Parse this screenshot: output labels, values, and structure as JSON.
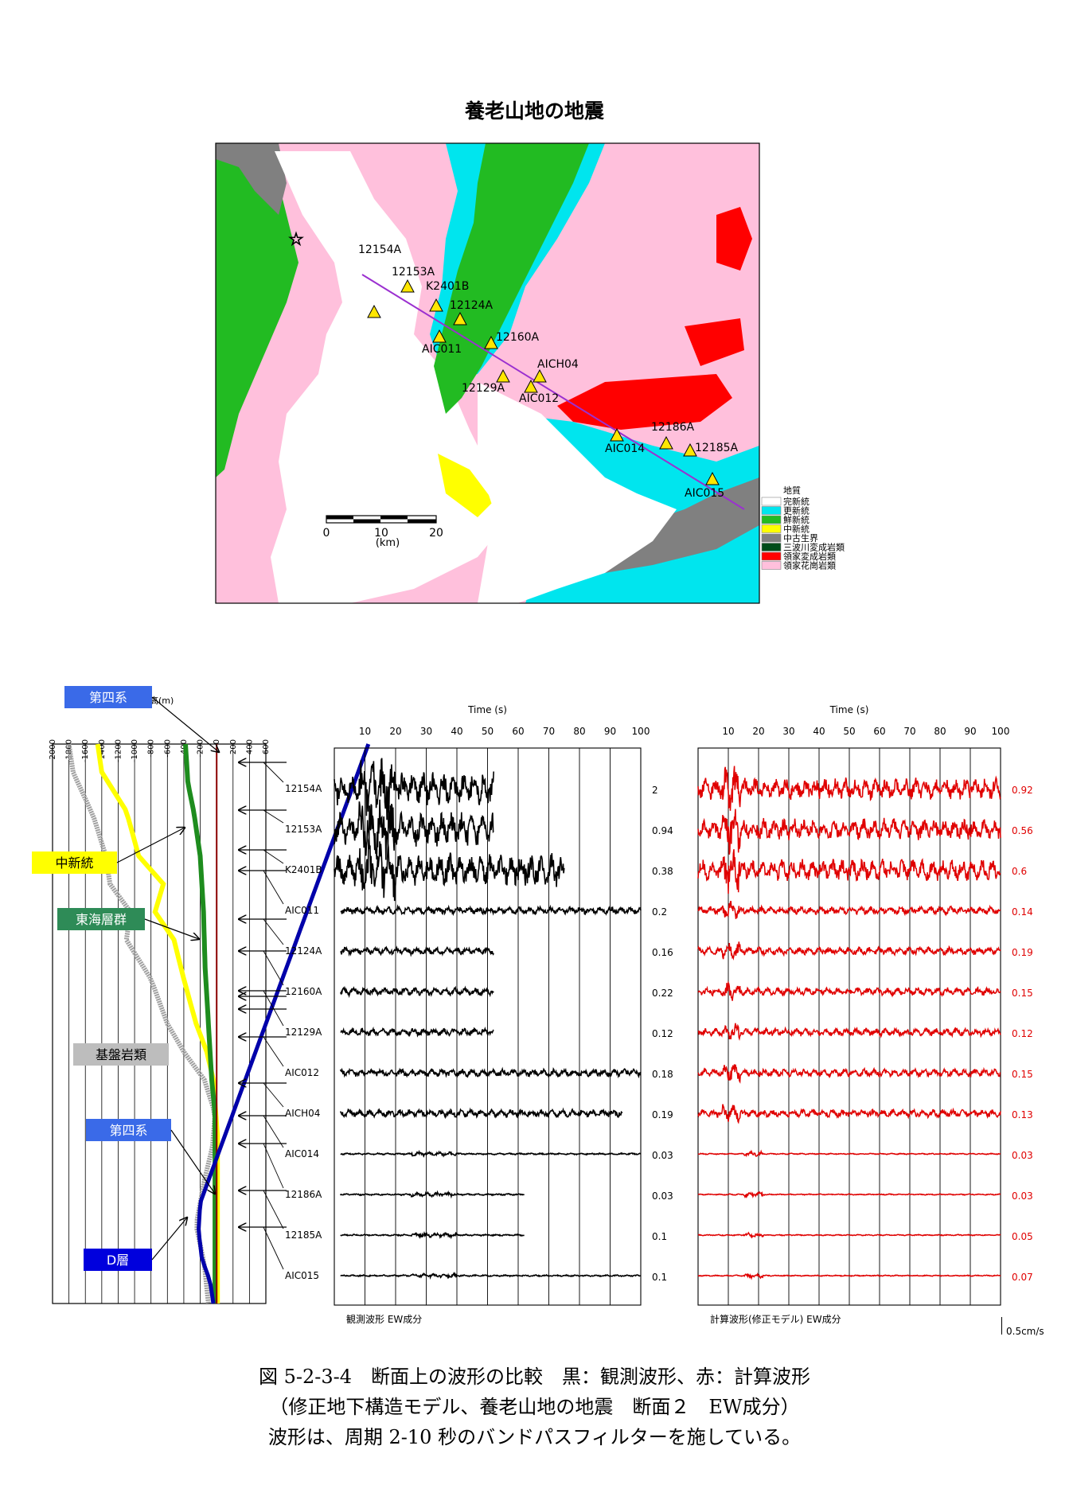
{
  "map": {
    "title": "養老山地の地震",
    "stations": [
      {
        "name": "12154A"
      },
      {
        "name": "12153A"
      },
      {
        "name": "K2401B"
      },
      {
        "name": "12124A"
      },
      {
        "name": "AIC011"
      },
      {
        "name": "12160A"
      },
      {
        "name": "AICH04"
      },
      {
        "name": "12129A"
      },
      {
        "name": "AIC012"
      },
      {
        "name": "12186A"
      },
      {
        "name": "AIC014"
      },
      {
        "name": "12185A"
      },
      {
        "name": "AIC015"
      }
    ],
    "scale": {
      "ticks": [
        "0",
        "10",
        "20"
      ],
      "unit": "(km)"
    },
    "legend": {
      "title": "地質",
      "items": [
        {
          "label": "完新統",
          "color": "#ffffff"
        },
        {
          "label": "更新統",
          "color": "#00e5ee"
        },
        {
          "label": "鮮新統",
          "color": "#22bb22"
        },
        {
          "label": "中新統",
          "color": "#ffff00"
        },
        {
          "label": "中古生界",
          "color": "#808080"
        },
        {
          "label": "三波川変成岩類",
          "color": "#004d1a"
        },
        {
          "label": "領家変成岩類",
          "color": "#ff0000"
        },
        {
          "label": "領家花崗岩類",
          "color": "#ffc0dc"
        }
      ]
    }
  },
  "section": {
    "elev_unit": "高(m)",
    "elev_ticks": [
      "-2000",
      "-1800",
      "-1600",
      "-1400",
      "-1200",
      "-1000",
      "-800",
      "-600",
      "-400",
      "-200",
      "0",
      "200",
      "400",
      "600"
    ],
    "labels": [
      {
        "text": "第四系",
        "bg": "#3a6ae8",
        "color": "#ffffff"
      },
      {
        "text": "中新統",
        "bg": "#ffff00",
        "color": "#000000"
      },
      {
        "text": "東海層群",
        "bg": "#2e8b57",
        "color": "#ffffff"
      },
      {
        "text": "基盤岩類",
        "bg": "#bdbdbd",
        "color": "#000000"
      },
      {
        "text": "第四系",
        "bg": "#3a6ae8",
        "color": "#ffffff"
      },
      {
        "text": "D層",
        "bg": "#0000dd",
        "color": "#ffffff"
      }
    ]
  },
  "waveforms": {
    "time_label": "Time (s)",
    "time_ticks": [
      "10",
      "20",
      "30",
      "40",
      "50",
      "60",
      "70",
      "80",
      "90",
      "100"
    ],
    "stations": [
      "12154A",
      "12153A",
      "K2401B",
      "AIC011",
      "12124A",
      "12160A",
      "12129A",
      "AIC012",
      "AICH04",
      "AIC014",
      "12186A",
      "12185A",
      "AIC015"
    ],
    "observed": {
      "title": "観測波形 EW成分",
      "color": "#000000",
      "amplitudes": [
        "2",
        "0.94",
        "0.38",
        "0.2",
        "0.16",
        "0.22",
        "0.12",
        "0.18",
        "0.19",
        "0.03",
        "0.03",
        "0.1",
        "0.1"
      ],
      "end_times": [
        52,
        52,
        75,
        100,
        52,
        52,
        52,
        100,
        94,
        100,
        62,
        62,
        100
      ]
    },
    "computed": {
      "title": "計算波形(修正モデル) EW成分",
      "color": "#e00000",
      "amplitudes": [
        "0.92",
        "0.56",
        "0.6",
        "0.14",
        "0.19",
        "0.15",
        "0.12",
        "0.15",
        "0.13",
        "0.03",
        "0.03",
        "0.05",
        "0.07"
      ]
    },
    "scale_bar": "0.5cm/s"
  },
  "caption": {
    "line1": "図 5-2-3-4　断面上の波形の比較　黒：観測波形、赤：計算波形",
    "line2": "（修正地下構造モデル、養老山地の地震　断面２　EW成分）",
    "line3": "波形は、周期 2-10 秒のバンドパスフィルターを施している。"
  }
}
